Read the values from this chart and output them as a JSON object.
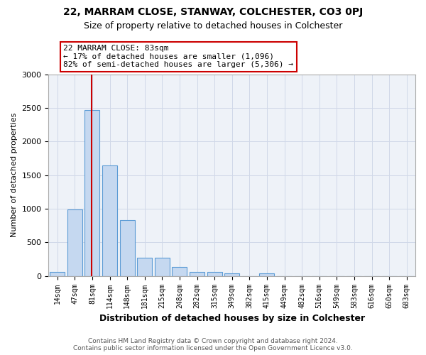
{
  "title": "22, MARRAM CLOSE, STANWAY, COLCHESTER, CO3 0PJ",
  "subtitle": "Size of property relative to detached houses in Colchester",
  "xlabel": "Distribution of detached houses by size in Colchester",
  "ylabel": "Number of detached properties",
  "categories": [
    "14sqm",
    "47sqm",
    "81sqm",
    "114sqm",
    "148sqm",
    "181sqm",
    "215sqm",
    "248sqm",
    "282sqm",
    "315sqm",
    "349sqm",
    "382sqm",
    "415sqm",
    "449sqm",
    "482sqm",
    "516sqm",
    "549sqm",
    "583sqm",
    "616sqm",
    "650sqm",
    "683sqm"
  ],
  "values": [
    55,
    985,
    2470,
    1650,
    830,
    270,
    270,
    130,
    55,
    55,
    40,
    0,
    40,
    0,
    0,
    0,
    0,
    0,
    0,
    0,
    0
  ],
  "bar_color": "#c5d8f0",
  "bar_edge_color": "#5b9bd5",
  "grid_color": "#d0d8e8",
  "background_color": "#eef2f8",
  "vline_x_pos": 1.97,
  "vline_color": "#cc0000",
  "annotation_text": "22 MARRAM CLOSE: 83sqm\n← 17% of detached houses are smaller (1,096)\n82% of semi-detached houses are larger (5,306) →",
  "annotation_box_edgecolor": "#cc0000",
  "footer_text": "Contains HM Land Registry data © Crown copyright and database right 2024.\nContains public sector information licensed under the Open Government Licence v3.0.",
  "ylim": [
    0,
    3000
  ],
  "yticks": [
    0,
    500,
    1000,
    1500,
    2000,
    2500,
    3000
  ]
}
